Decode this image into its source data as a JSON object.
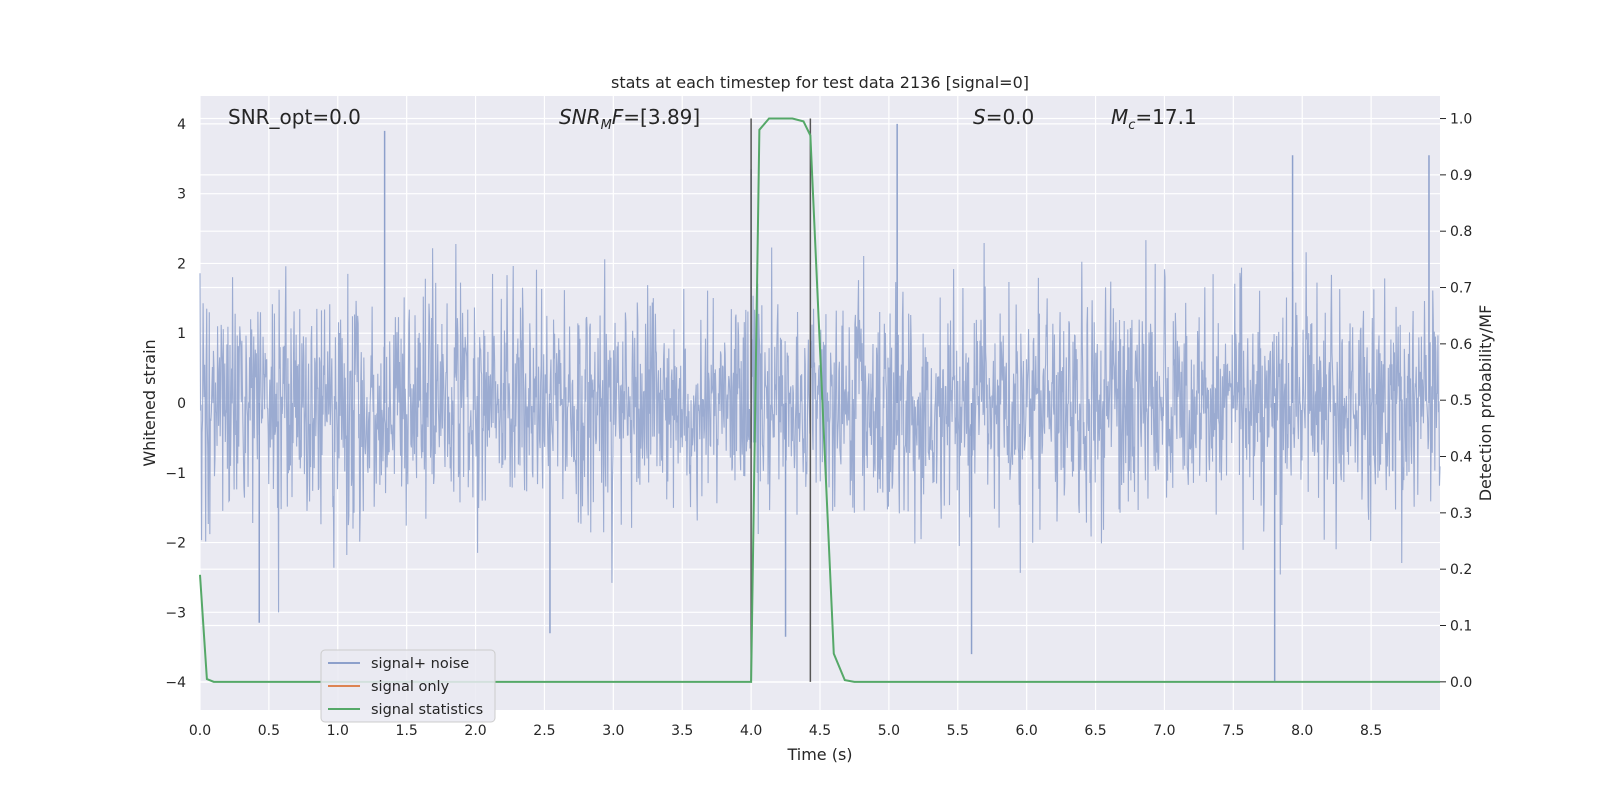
{
  "chart_data": {
    "type": "line",
    "title": "stats at each timestep for test data 2136 [signal=0]",
    "xlabel": "Time (s)",
    "ylabel_left": "Whitened strain",
    "ylabel_right": "Detection probability/MF",
    "xlim": [
      0.0,
      9.0
    ],
    "ylim_left": [
      -4.4,
      4.4
    ],
    "ylim_right": [
      -0.05,
      1.04
    ],
    "x_ticks": [
      "0.0",
      "0.5",
      "1.0",
      "1.5",
      "2.0",
      "2.5",
      "3.0",
      "3.5",
      "4.0",
      "4.5",
      "5.0",
      "5.5",
      "6.0",
      "6.5",
      "7.0",
      "7.5",
      "8.0",
      "8.5"
    ],
    "y_left_ticks": [
      "4",
      "3",
      "2",
      "1",
      "0",
      "−1",
      "−2",
      "−3",
      "−4"
    ],
    "y_right_ticks": [
      "1.0",
      "0.9",
      "0.8",
      "0.7",
      "0.6",
      "0.5",
      "0.4",
      "0.3",
      "0.2",
      "0.1",
      "0.0"
    ],
    "grid": true,
    "legend_placement": "lower-left",
    "annotations": [
      {
        "text": "SNR_opt=0.0",
        "x": 0.2,
        "y_right": 1.0
      },
      {
        "text": "SNR_MF=[3.89]",
        "x": 2.6,
        "y_right": 1.0
      },
      {
        "text": "S=0.0",
        "x": 5.6,
        "y_right": 1.0
      },
      {
        "text": "M_c=17.1",
        "x": 6.6,
        "y_right": 1.0
      }
    ],
    "vlines": [
      4.0,
      4.43
    ],
    "series": [
      {
        "name": "signal+ noise",
        "color": "#8da0cb",
        "axis": "left",
        "kind": "noise",
        "noise_std": 0.8,
        "band_upper_approx": 1.6,
        "band_lower_approx": -1.6,
        "notable_peaks": [
          [
            1.34,
            3.9
          ],
          [
            5.06,
            4.0
          ],
          [
            7.93,
            3.55
          ],
          [
            8.92,
            3.55
          ],
          [
            4.0,
            3.35
          ],
          [
            0.43,
            -3.15
          ],
          [
            2.54,
            -3.3
          ],
          [
            4.25,
            -3.35
          ],
          [
            5.6,
            -3.6
          ],
          [
            7.8,
            -4.0
          ]
        ]
      },
      {
        "name": "signal only",
        "color": "#dd8452",
        "axis": "left",
        "kind": "zero",
        "values": [
          0.0
        ]
      },
      {
        "name": "signal statistics",
        "color": "#55a868",
        "axis": "right",
        "kind": "line",
        "x": [
          0.0,
          0.05,
          0.1,
          3.95,
          4.0,
          4.06,
          4.13,
          4.3,
          4.38,
          4.43,
          4.6,
          4.68,
          4.75,
          9.0
        ],
        "y": [
          0.19,
          0.005,
          0.0,
          0.0,
          0.0,
          0.98,
          1.0,
          1.0,
          0.995,
          0.97,
          0.05,
          0.003,
          0.0,
          0.0
        ]
      }
    ]
  }
}
